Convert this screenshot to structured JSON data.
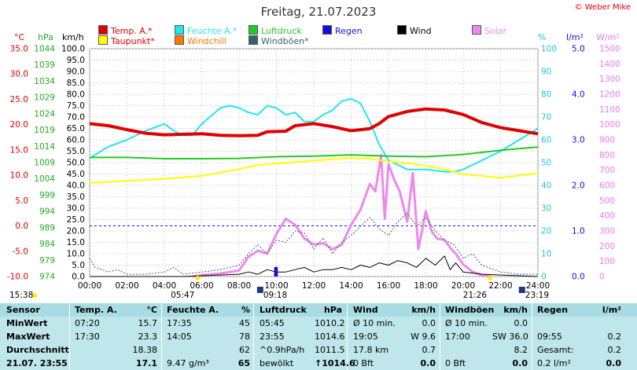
{
  "header": {
    "title": "Freitag, 21.07.2023",
    "credit": "© Weber Mike"
  },
  "legend": [
    {
      "label": "Temp. A.*",
      "color": "#e00000"
    },
    {
      "label": "Feuchte A.*",
      "color": "#22e6ee"
    },
    {
      "label": "Luftdruck",
      "color": "#22cc22"
    },
    {
      "label": "Regen",
      "color": "#1010dd"
    },
    {
      "label": "Wind",
      "color": "#000000"
    },
    {
      "label": "Solar",
      "color": "#ee88ee"
    },
    {
      "label": "Taupunkt*",
      "color": "#ffff00"
    },
    {
      "label": "Windchill",
      "color": "#ff7700"
    },
    {
      "label": "Windböen*",
      "color": "#336666"
    }
  ],
  "units": {
    "celsius": "°C",
    "hpa": "hPa",
    "kmh": "km/h",
    "percent": "%",
    "rain": "l/m²",
    "solar": "W/m²"
  },
  "chart_data": {
    "type": "line",
    "title": "Freitag, 21.07.2023",
    "x_ticks": [
      "00:00",
      "02:00",
      "04:00",
      "06:00",
      "08:00",
      "10:00",
      "12:00",
      "14:00",
      "16:00",
      "18:00",
      "20:00",
      "22:00",
      "24:00"
    ],
    "axes": {
      "temperature": {
        "label": "°C",
        "ylim": [
          -10,
          35
        ],
        "ticks": [
          "35.0",
          "30.0",
          "25.0",
          "20.0",
          "15.0",
          "10.0",
          "5.0",
          "0.0",
          "-5.0",
          "-10.0"
        ]
      },
      "pressure": {
        "label": "hPa",
        "ylim": [
          974,
          1044
        ],
        "ticks": [
          "1044",
          "1039",
          "1034",
          "1029",
          "1024",
          "1019",
          "1014",
          "1009",
          "1004",
          "999",
          "994",
          "989",
          "984",
          "979",
          "974"
        ]
      },
      "wind": {
        "label": "km/h",
        "ylim": [
          0,
          100
        ],
        "ticks": [
          "100.0",
          "95.0",
          "90.0",
          "85.0",
          "80.0",
          "75.0",
          "70.0",
          "65.0",
          "60.0",
          "55.0",
          "50.0",
          "45.0",
          "40.0",
          "35.0",
          "30.0",
          "25.0",
          "20.0",
          "15.0",
          "10.0",
          "5.0",
          "0.0"
        ]
      },
      "humidity": {
        "label": "%",
        "ylim": [
          0,
          100
        ],
        "ticks": [
          "100",
          "90",
          "80",
          "70",
          "60",
          "50",
          "40",
          "30",
          "20",
          "10",
          "0"
        ]
      },
      "rain": {
        "label": "l/m²",
        "ylim": [
          0,
          5
        ],
        "ticks": [
          "5.0",
          "4.0",
          "3.0",
          "2.0",
          "1.0",
          "0.0"
        ]
      },
      "solar": {
        "label": "W/m²",
        "ylim": [
          0,
          1500
        ],
        "ticks": [
          "1500",
          "1400",
          "1300",
          "1200",
          "1100",
          "1000",
          "900",
          "800",
          "700",
          "600",
          "500",
          "400",
          "300",
          "200",
          "100",
          "0"
        ]
      }
    },
    "series": [
      {
        "name": "Temp. A.*",
        "axis": "temperature",
        "color": "#e00000",
        "points": [
          [
            0,
            20.2
          ],
          [
            1,
            19.8
          ],
          [
            2,
            19.0
          ],
          [
            3,
            18.3
          ],
          [
            4,
            18.0
          ],
          [
            5,
            18.1
          ],
          [
            6,
            18.2
          ],
          [
            7,
            17.9
          ],
          [
            8,
            17.8
          ],
          [
            9,
            17.9
          ],
          [
            9.5,
            18.6
          ],
          [
            10.5,
            18.7
          ],
          [
            11,
            19.8
          ],
          [
            12,
            20.2
          ],
          [
            13,
            19.6
          ],
          [
            13.5,
            19.2
          ],
          [
            14,
            18.8
          ],
          [
            15,
            19.2
          ],
          [
            15.5,
            20.2
          ],
          [
            16,
            21.6
          ],
          [
            17,
            22.6
          ],
          [
            18,
            23.1
          ],
          [
            19,
            22.9
          ],
          [
            20,
            22.0
          ],
          [
            21,
            20.4
          ],
          [
            22,
            19.4
          ],
          [
            23,
            18.8
          ],
          [
            24,
            18.2
          ]
        ]
      },
      {
        "name": "Feuchte A.*",
        "axis": "humidity",
        "color": "#22e6ee",
        "points": [
          [
            0,
            52
          ],
          [
            1,
            57
          ],
          [
            2,
            60
          ],
          [
            3,
            64
          ],
          [
            4,
            67
          ],
          [
            4.5,
            64
          ],
          [
            5,
            62
          ],
          [
            5.5,
            62
          ],
          [
            6,
            67
          ],
          [
            7,
            74
          ],
          [
            7.5,
            75
          ],
          [
            8,
            74
          ],
          [
            8.5,
            72
          ],
          [
            9,
            71
          ],
          [
            9.5,
            75
          ],
          [
            10,
            74
          ],
          [
            10.5,
            71
          ],
          [
            11,
            72
          ],
          [
            11.5,
            68
          ],
          [
            12,
            68
          ],
          [
            12.5,
            71
          ],
          [
            13,
            73
          ],
          [
            13.5,
            77
          ],
          [
            14,
            78
          ],
          [
            14.5,
            76
          ],
          [
            15,
            68
          ],
          [
            15.5,
            58
          ],
          [
            16,
            51
          ],
          [
            17,
            47
          ],
          [
            18,
            47
          ],
          [
            19,
            46
          ],
          [
            19.5,
            46
          ],
          [
            20,
            47
          ],
          [
            21,
            51
          ],
          [
            22,
            55
          ],
          [
            23,
            60
          ],
          [
            24,
            65
          ]
        ]
      },
      {
        "name": "Luftdruck",
        "axis": "pressure",
        "color": "#22cc22",
        "points": [
          [
            0,
            1010.6
          ],
          [
            2,
            1010.6
          ],
          [
            4,
            1010.2
          ],
          [
            6,
            1010.2
          ],
          [
            8,
            1010.3
          ],
          [
            10,
            1010.8
          ],
          [
            12,
            1011.0
          ],
          [
            14,
            1011.4
          ],
          [
            16,
            1011.0
          ],
          [
            18,
            1010.8
          ],
          [
            20,
            1011.5
          ],
          [
            22,
            1012.8
          ],
          [
            24,
            1013.8
          ]
        ]
      },
      {
        "name": "Taupunkt*",
        "axis": "temperature",
        "color": "#ffff00",
        "points": [
          [
            0,
            8.5
          ],
          [
            2,
            8.9
          ],
          [
            4,
            9.3
          ],
          [
            6,
            9.9
          ],
          [
            8,
            11.2
          ],
          [
            9,
            12.0
          ],
          [
            10,
            12.3
          ],
          [
            12,
            12.9
          ],
          [
            14,
            13.4
          ],
          [
            15,
            13.3
          ],
          [
            16,
            12.7
          ],
          [
            17,
            12.4
          ],
          [
            18,
            11.9
          ],
          [
            19,
            11.2
          ],
          [
            20,
            10.2
          ],
          [
            22,
            9.5
          ],
          [
            24,
            10.4
          ]
        ]
      },
      {
        "name": "Solar",
        "axis": "solar",
        "color": "#ee88ee",
        "points": [
          [
            5.5,
            0
          ],
          [
            6,
            10
          ],
          [
            7,
            20
          ],
          [
            8,
            40
          ],
          [
            8.5,
            130
          ],
          [
            9,
            170
          ],
          [
            9.5,
            150
          ],
          [
            10,
            280
          ],
          [
            10.5,
            380
          ],
          [
            11,
            340
          ],
          [
            11.5,
            250
          ],
          [
            12,
            210
          ],
          [
            12.5,
            220
          ],
          [
            13,
            180
          ],
          [
            13.5,
            210
          ],
          [
            14,
            340
          ],
          [
            14.5,
            440
          ],
          [
            15,
            610
          ],
          [
            15.3,
            560
          ],
          [
            15.6,
            800
          ],
          [
            15.8,
            380
          ],
          [
            16,
            740
          ],
          [
            16.3,
            640
          ],
          [
            16.6,
            560
          ],
          [
            17,
            360
          ],
          [
            17.3,
            680
          ],
          [
            17.6,
            180
          ],
          [
            18,
            430
          ],
          [
            18.3,
            300
          ],
          [
            18.6,
            250
          ],
          [
            19,
            240
          ],
          [
            19.3,
            190
          ],
          [
            19.6,
            150
          ],
          [
            20,
            80
          ],
          [
            20.5,
            30
          ],
          [
            21,
            10
          ],
          [
            21.5,
            0
          ]
        ]
      },
      {
        "name": "Windböen*",
        "axis": "wind",
        "color": "#336666",
        "points": [
          [
            0,
            8
          ],
          [
            0.3,
            4
          ],
          [
            1,
            2
          ],
          [
            1.5,
            3
          ],
          [
            2,
            1
          ],
          [
            3,
            1
          ],
          [
            4,
            2
          ],
          [
            4.5,
            4
          ],
          [
            5,
            1
          ],
          [
            6,
            2
          ],
          [
            7,
            3
          ],
          [
            8,
            5
          ],
          [
            8.5,
            10
          ],
          [
            9,
            14
          ],
          [
            9.5,
            10
          ],
          [
            10,
            16
          ],
          [
            10.5,
            15
          ],
          [
            11,
            20
          ],
          [
            11.5,
            19
          ],
          [
            12,
            12
          ],
          [
            12.5,
            17
          ],
          [
            13,
            10
          ],
          [
            13.5,
            15
          ],
          [
            14,
            18
          ],
          [
            14.5,
            22
          ],
          [
            15,
            26
          ],
          [
            15.5,
            21
          ],
          [
            16,
            18
          ],
          [
            16.5,
            24
          ],
          [
            17,
            28
          ],
          [
            17.5,
            22
          ],
          [
            18,
            26
          ],
          [
            18.5,
            20
          ],
          [
            19,
            16
          ],
          [
            19.5,
            14
          ],
          [
            20,
            8
          ],
          [
            20.5,
            10
          ],
          [
            21,
            5
          ],
          [
            22,
            2
          ],
          [
            23,
            1
          ],
          [
            24,
            1
          ]
        ]
      },
      {
        "name": "Wind",
        "axis": "wind",
        "color": "#000000",
        "points": [
          [
            0,
            0
          ],
          [
            5,
            0
          ],
          [
            8,
            1
          ],
          [
            8.5,
            2
          ],
          [
            9,
            1
          ],
          [
            9.5,
            3
          ],
          [
            10,
            2
          ],
          [
            10.5,
            2
          ],
          [
            11,
            3
          ],
          [
            11.5,
            4
          ],
          [
            12,
            2
          ],
          [
            12.5,
            3
          ],
          [
            13,
            3
          ],
          [
            13.5,
            4
          ],
          [
            14,
            3
          ],
          [
            14.5,
            5
          ],
          [
            15,
            4
          ],
          [
            15.5,
            6
          ],
          [
            16,
            5
          ],
          [
            16.5,
            7
          ],
          [
            17,
            6
          ],
          [
            17.5,
            4
          ],
          [
            18,
            8
          ],
          [
            18.5,
            5
          ],
          [
            19,
            9
          ],
          [
            19.3,
            3
          ],
          [
            19.6,
            6
          ],
          [
            20,
            2
          ],
          [
            21,
            1
          ],
          [
            24,
            0
          ]
        ]
      },
      {
        "name": "Regen",
        "axis": "rain",
        "color": "#1010dd",
        "points": [
          [
            9.9,
            0
          ],
          [
            9.9,
            0.2
          ],
          [
            10.05,
            0.2
          ],
          [
            10.05,
            0
          ]
        ]
      }
    ]
  },
  "markers": {
    "sunrise": "05:47",
    "sunset": "21:26",
    "moonrise": "09:18",
    "moonset": "23:19",
    "dawn": "15:38"
  },
  "stats": {
    "headers": [
      "Sensor",
      "Temp. A.",
      "°C",
      "Feuchte A.",
      "%",
      "Luftdruck",
      "hPa",
      "Wind",
      "km/h",
      "Windböen",
      "km/h",
      "Regen",
      "l/m²"
    ],
    "rows": [
      {
        "label": "MinWert",
        "cells": [
          "07:20",
          "15.7",
          "17:35",
          "45",
          "05:45",
          "1010.2",
          "Ø 10 min.",
          "0.0",
          "Ø 10 min.",
          "0.0",
          "",
          ""
        ]
      },
      {
        "label": "MaxWert",
        "cells": [
          "17:30",
          "23.3",
          "14:05",
          "78",
          "23:55",
          "1014.6",
          "19:05",
          "W 9.6",
          "17:00",
          "SW 36.0",
          "09:55",
          "0.2"
        ]
      },
      {
        "label": "Durchschnitt",
        "cells": [
          "",
          "18.38",
          "",
          "62",
          "^0.9hPa/h",
          "1011.5",
          "17.8 km",
          "0.7",
          "",
          "8.2",
          "Gesamt:",
          "0.2"
        ]
      },
      {
        "label": "21.07. 23:55",
        "cells": [
          "",
          "17.1",
          "9.47 g/m³",
          "65",
          "bewölkt",
          "↑1014.6",
          "0 Bft",
          "0.0",
          "0 Bft",
          "0.0",
          "0.2 l/m²",
          "0.0"
        ]
      }
    ]
  }
}
